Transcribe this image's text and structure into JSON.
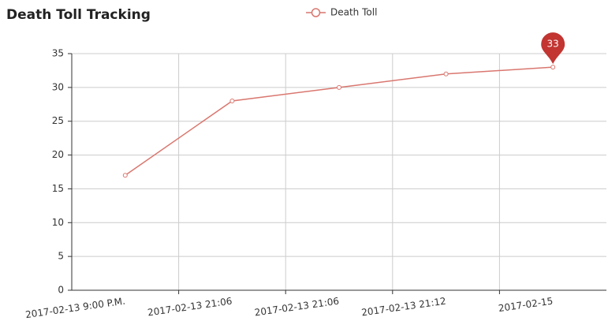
{
  "chart_data": {
    "type": "line",
    "title": "Death Toll Tracking",
    "categories": [
      "2017-02-13 9:00 P.M.",
      "2017-02-13 21:06",
      "2017-02-13 21:06",
      "2017-02-13 21:12",
      "2017-02-15"
    ],
    "series": [
      {
        "name": "Death Toll",
        "color": "#d9776f",
        "values": [
          17,
          28,
          30,
          32,
          33
        ]
      }
    ],
    "ylim": [
      0,
      35
    ],
    "yticks": [
      0,
      5,
      10,
      15,
      20,
      25,
      30,
      35
    ],
    "grid": true,
    "max_marker_color": "#c23531",
    "legend": "top"
  }
}
